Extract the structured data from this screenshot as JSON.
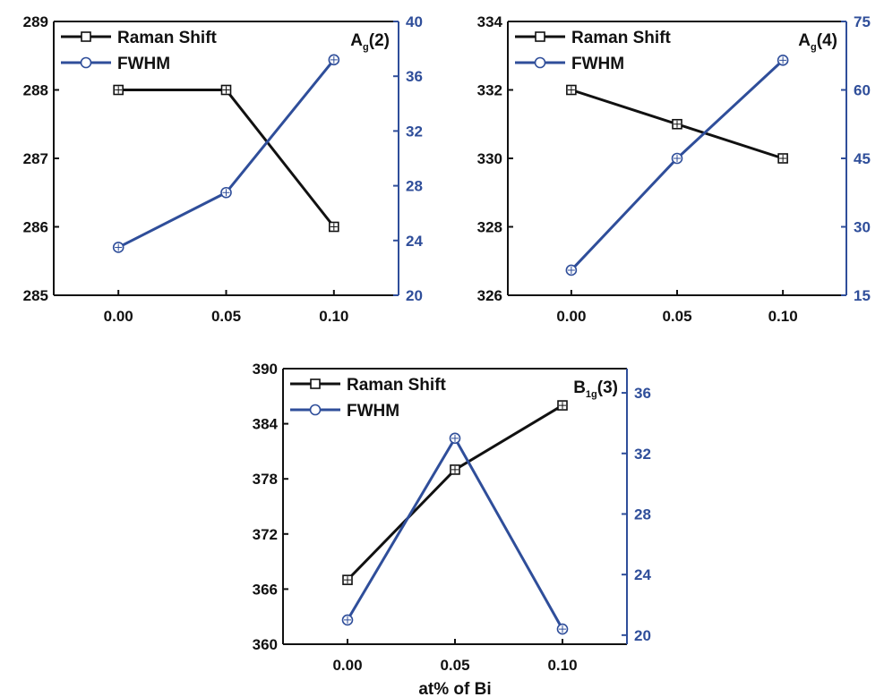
{
  "colors": {
    "raman": "#111111",
    "fwhm": "#2f4e9a",
    "right_axis": "#2f4e9a"
  },
  "legend": {
    "raman": "Raman Shift",
    "fwhm": "FWHM"
  },
  "chart_data": [
    {
      "type": "line",
      "panel_label": {
        "base": "A",
        "sub": "g",
        "suffix": "(2)"
      },
      "categories": [
        0.0,
        0.05,
        0.1
      ],
      "x_tick_labels": [
        "0.00",
        "0.05",
        "0.10"
      ],
      "xlabel": "",
      "left_axis": {
        "ylim": [
          285,
          289
        ],
        "ticks": [
          285,
          286,
          287,
          288,
          289
        ]
      },
      "right_axis": {
        "ylim": [
          20,
          40
        ],
        "ticks": [
          20,
          24,
          28,
          32,
          36,
          40
        ]
      },
      "series": [
        {
          "name": "Raman Shift",
          "axis": "left",
          "values": [
            288,
            288,
            286
          ]
        },
        {
          "name": "FWHM",
          "axis": "right",
          "values": [
            23.5,
            27.5,
            37.2
          ]
        }
      ]
    },
    {
      "type": "line",
      "panel_label": {
        "base": "A",
        "sub": "g",
        "suffix": "(4)"
      },
      "categories": [
        0.0,
        0.05,
        0.1
      ],
      "x_tick_labels": [
        "0.00",
        "0.05",
        "0.10"
      ],
      "xlabel": "",
      "left_axis": {
        "ylim": [
          326,
          334
        ],
        "ticks": [
          326,
          328,
          330,
          332,
          334
        ]
      },
      "right_axis": {
        "ylim": [
          15,
          75
        ],
        "ticks": [
          15,
          30,
          45,
          60,
          75
        ]
      },
      "series": [
        {
          "name": "Raman Shift",
          "axis": "left",
          "values": [
            332,
            331,
            330
          ]
        },
        {
          "name": "FWHM",
          "axis": "right",
          "values": [
            20.5,
            45,
            66.5
          ]
        }
      ]
    },
    {
      "type": "line",
      "panel_label": {
        "base": "B",
        "sub": "1g",
        "suffix": "(3)"
      },
      "categories": [
        0.0,
        0.05,
        0.1
      ],
      "x_tick_labels": [
        "0.00",
        "0.05",
        "0.10"
      ],
      "xlabel": "at% of Bi",
      "left_axis": {
        "ylim": [
          360,
          390
        ],
        "ticks": [
          360,
          366,
          372,
          378,
          384,
          390
        ]
      },
      "right_axis": {
        "ylim": [
          19.4,
          37.6
        ],
        "ticks": [
          20,
          24,
          28,
          32,
          36
        ]
      },
      "series": [
        {
          "name": "Raman Shift",
          "axis": "left",
          "values": [
            367,
            379,
            386
          ]
        },
        {
          "name": "FWHM",
          "axis": "right",
          "values": [
            21,
            33,
            20.4
          ]
        }
      ]
    }
  ]
}
